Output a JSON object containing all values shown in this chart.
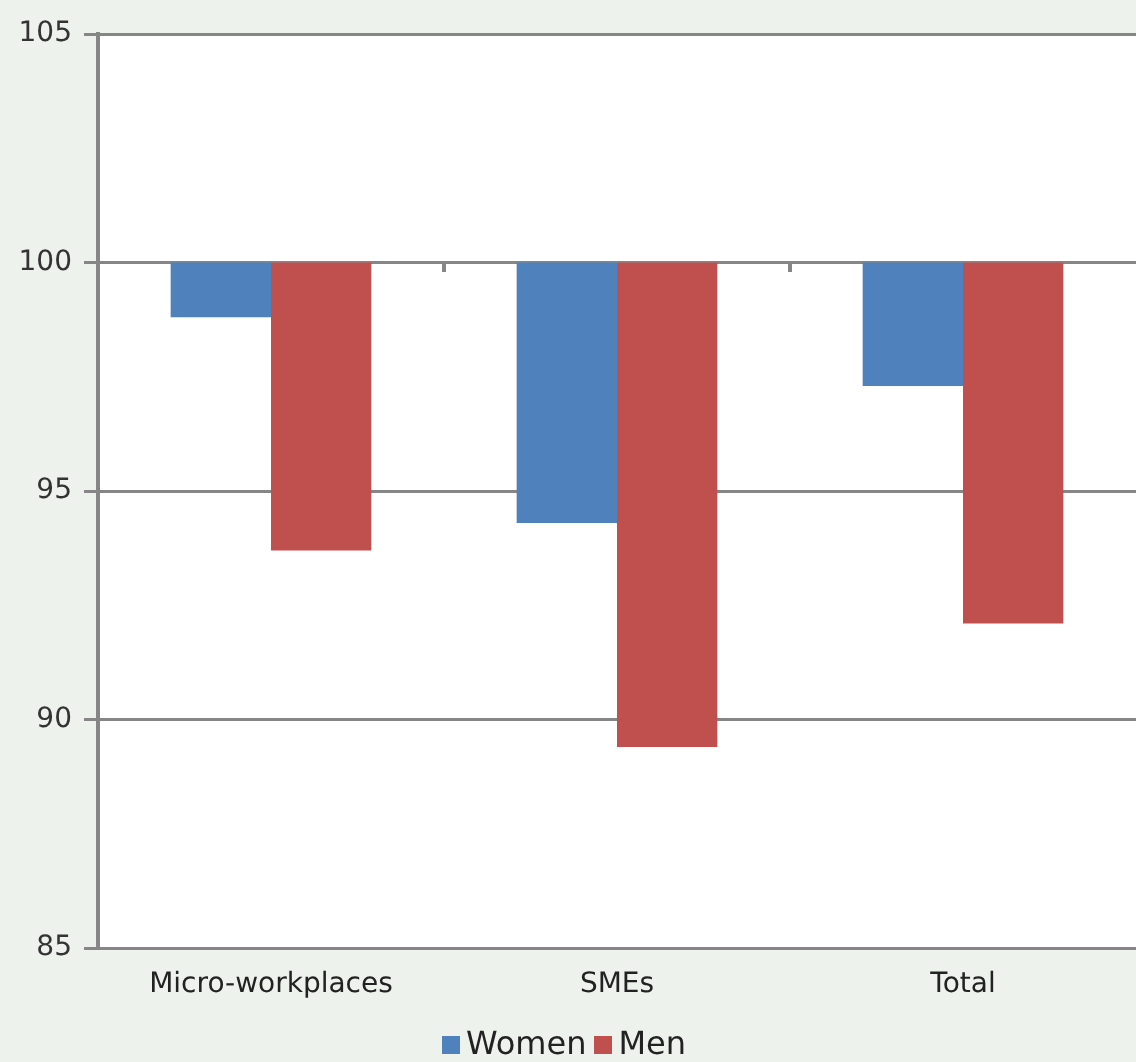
{
  "chart_data": {
    "type": "bar",
    "categories": [
      "Micro-workplaces",
      "SMEs",
      "Total"
    ],
    "series": [
      {
        "name": "Women",
        "color": "#4f81bd",
        "base": [
          100,
          100,
          100
        ],
        "values": [
          -1.2,
          -5.7,
          -2.7
        ]
      },
      {
        "name": "Men",
        "color": "#c0504d",
        "base": [
          100,
          100,
          100
        ],
        "values": [
          -6.3,
          -10.6,
          -7.9
        ]
      }
    ],
    "ylim": [
      85,
      105
    ],
    "yticks": [
      85,
      90,
      95,
      100,
      105
    ],
    "grid": "y",
    "legend": "bottom"
  }
}
